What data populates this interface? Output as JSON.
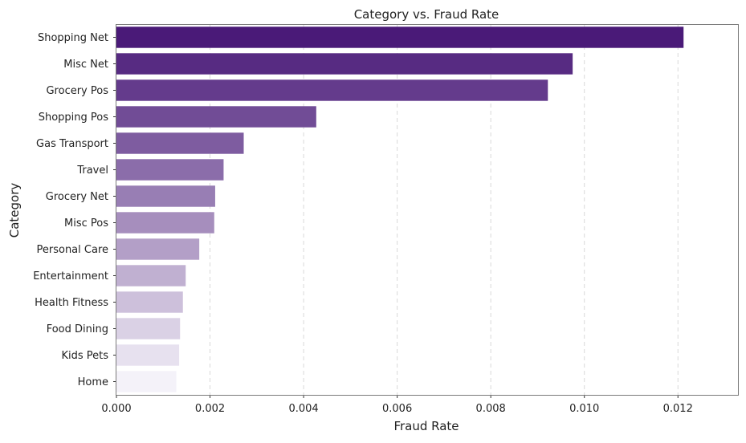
{
  "chart_data": {
    "type": "bar",
    "orientation": "horizontal",
    "title": "Category vs. Fraud Rate",
    "xlabel": "Fraud Rate",
    "ylabel": "Category",
    "categories": [
      "Shopping Net",
      "Misc Net",
      "Grocery Pos",
      "Shopping Pos",
      "Gas Transport",
      "Travel",
      "Grocery Net",
      "Misc Pos",
      "Personal Care",
      "Entertainment",
      "Health Fitness",
      "Food Dining",
      "Kids Pets",
      "Home"
    ],
    "values": [
      0.01212,
      0.00975,
      0.00922,
      0.00427,
      0.00272,
      0.00229,
      0.00211,
      0.00209,
      0.00177,
      0.00148,
      0.00142,
      0.00136,
      0.00134,
      0.00128
    ],
    "xlim": [
      0,
      0.0133
    ],
    "xticks": [
      0.0,
      0.002,
      0.004,
      0.006,
      0.008,
      0.01,
      0.012
    ],
    "xtick_labels": [
      "0.000",
      "0.002",
      "0.004",
      "0.006",
      "0.008",
      "0.010",
      "0.012"
    ],
    "grid": "x dashed",
    "legend": "none",
    "colors": {
      "palette_start": "#4a1a78",
      "palette_end": "#f4f2f9"
    }
  }
}
